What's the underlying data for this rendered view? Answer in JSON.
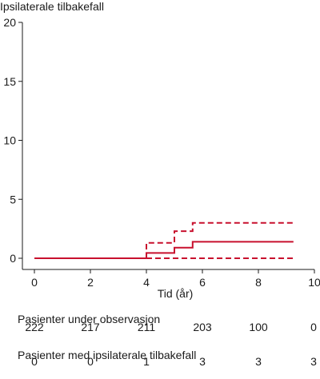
{
  "chart_data": {
    "type": "line",
    "ylabel": "Ipsilaterale tilbakefall",
    "xlabel": "Tid (år)",
    "xlim": [
      0,
      10
    ],
    "ylim": [
      0,
      20
    ],
    "x_ticks": [
      0,
      2,
      4,
      6,
      8,
      10
    ],
    "y_ticks": [
      0,
      5,
      10,
      15,
      20
    ],
    "grid": false,
    "line_color": "#c8102e",
    "series": [
      {
        "style": "solid",
        "x": [
          0.0,
          4.0,
          4.0,
          5.0,
          5.0,
          5.65,
          5.65,
          9.25
        ],
        "y": [
          0.0,
          0.0,
          0.45,
          0.45,
          0.9,
          0.9,
          1.4,
          1.4
        ]
      },
      {
        "style": "dashed",
        "x": [
          4.0,
          4.0,
          5.0,
          5.0,
          5.65,
          5.65,
          9.25
        ],
        "y": [
          0.0,
          1.3,
          1.3,
          2.3,
          2.3,
          3.0,
          3.0
        ]
      },
      {
        "style": "dashed",
        "x": [
          4.0,
          9.25
        ],
        "y": [
          0.0,
          0.0
        ]
      }
    ],
    "tables": [
      {
        "title": "Pasienter under observasjon",
        "x": [
          0,
          2,
          4,
          6,
          8,
          10
        ],
        "values": [
          "222",
          "217",
          "211",
          "203",
          "100",
          "0"
        ]
      },
      {
        "title": "Pasienter med ipsilaterale tilbakefall",
        "x": [
          0,
          2,
          4,
          6,
          8,
          10
        ],
        "values": [
          "0",
          "0",
          "1",
          "3",
          "3",
          "3"
        ]
      }
    ]
  }
}
